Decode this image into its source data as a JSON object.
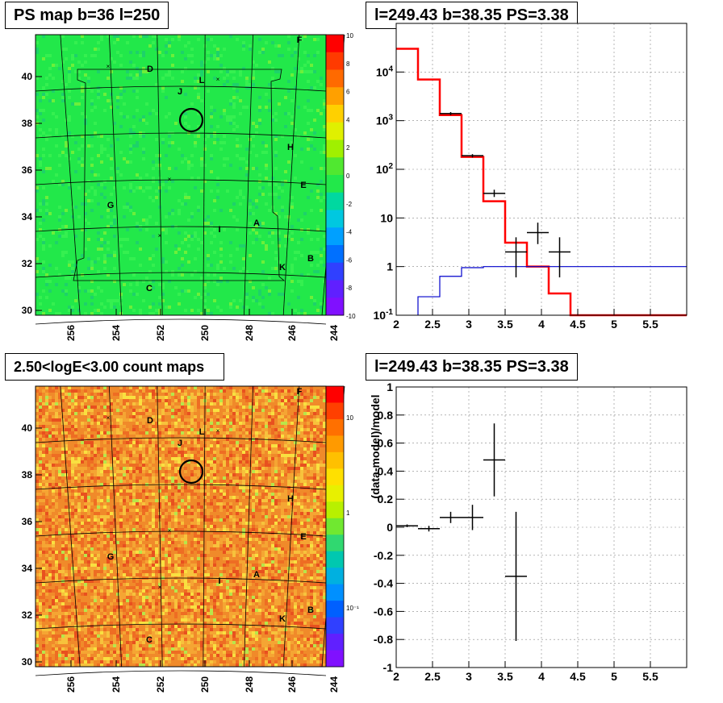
{
  "panels": {
    "tl": {
      "title": "PS map b=36 l=250"
    },
    "tr": {
      "title": "l=249.43 b=38.35 PS=3.38"
    },
    "bl": {
      "title": "2.50<logE<3.00 count maps"
    },
    "br": {
      "title": "l=249.43 b=38.35 PS=3.38"
    }
  },
  "colors": {
    "ps_map_base": "#22e84a",
    "count_map_base": "#f08a2a",
    "model_line": "#ff0000",
    "data_points": "#000000",
    "background_line": "#0000cc"
  },
  "maps": {
    "x_ticks": [
      "256",
      "254",
      "252",
      "250",
      "248",
      "246",
      "244"
    ],
    "y_ticks": [
      "30",
      "32",
      "34",
      "36",
      "38",
      "40"
    ],
    "source_labels": [
      "F",
      "D",
      "L",
      "J",
      "H",
      "E",
      "G",
      "I",
      "A",
      "K",
      "B",
      "C"
    ],
    "ps_colorbar_ticks": [
      "10",
      "8",
      "6",
      "4",
      "2",
      "0",
      "-2",
      "-4",
      "-6",
      "-8",
      "-10"
    ],
    "count_colorbar_ticks": [
      "10",
      "1",
      "10⁻¹"
    ]
  },
  "chart_data": [
    {
      "type": "line",
      "title": "l=249.43 b=38.35 PS=3.38",
      "xlabel": "",
      "ylabel": "",
      "xlim": [
        2,
        6
      ],
      "ylim": [
        0.1,
        100000
      ],
      "yscale": "log",
      "x_ticks": [
        "2",
        "2.5",
        "3",
        "3.5",
        "4",
        "4.5",
        "5",
        "5.5"
      ],
      "y_ticks": [
        "10^-1",
        "1",
        "10",
        "10^2",
        "10^3",
        "10^4"
      ],
      "grid": true,
      "series": [
        {
          "kind": "step",
          "edges": [
            2,
            2.3,
            2.6,
            2.9,
            3.2,
            3.5,
            3.8,
            4.1,
            4.4,
            6
          ],
          "values": [
            30000,
            7000,
            1300,
            180,
            22,
            3.1,
            1.0,
            0.28,
            0.1
          ]
        },
        {
          "kind": "step",
          "edges": [
            2.3,
            2.6,
            2.9,
            3.2,
            6
          ],
          "values": [
            0.24,
            0.63,
            0.95,
            1.0
          ]
        },
        {
          "kind": "points",
          "points": [
            {
              "x": 2.75,
              "y": 1400,
              "xerr": 0.15,
              "ylo": 1300,
              "yhi": 1500
            },
            {
              "x": 3.05,
              "y": 190,
              "xerr": 0.15,
              "ylo": 175,
              "yhi": 205
            },
            {
              "x": 3.35,
              "y": 32,
              "xerr": 0.15,
              "ylo": 27,
              "yhi": 38
            },
            {
              "x": 3.65,
              "y": 2,
              "xerr": 0.15,
              "ylo": 0.6,
              "yhi": 4
            },
            {
              "x": 3.95,
              "y": 5,
              "xerr": 0.15,
              "ylo": 2.9,
              "yhi": 8
            },
            {
              "x": 4.25,
              "y": 2,
              "xerr": 0.15,
              "ylo": 0.6,
              "yhi": 4
            }
          ]
        }
      ]
    },
    {
      "type": "scatter",
      "title": "l=249.43 b=38.35 PS=3.38",
      "xlabel": "",
      "ylabel": "(data-model)/model",
      "xlim": [
        2,
        6
      ],
      "ylim": [
        -1,
        1
      ],
      "x_ticks": [
        "2",
        "2.5",
        "3",
        "3.5",
        "4",
        "4.5",
        "5",
        "5.5"
      ],
      "y_ticks": [
        "-1",
        "-0.8",
        "-0.6",
        "-0.4",
        "-0.2",
        "0",
        "0.2",
        "0.4",
        "0.6",
        "0.8",
        "1"
      ],
      "grid": true,
      "points": [
        {
          "x": 2.15,
          "y": 0.01,
          "xerr": 0.15,
          "ylo": 0.0,
          "yhi": 0.02
        },
        {
          "x": 2.45,
          "y": -0.01,
          "xerr": 0.15,
          "ylo": -0.03,
          "yhi": 0.01
        },
        {
          "x": 2.75,
          "y": 0.07,
          "xerr": 0.15,
          "ylo": 0.03,
          "yhi": 0.11
        },
        {
          "x": 3.05,
          "y": 0.07,
          "xerr": 0.15,
          "ylo": -0.02,
          "yhi": 0.16
        },
        {
          "x": 3.35,
          "y": 0.48,
          "xerr": 0.15,
          "ylo": 0.22,
          "yhi": 0.74
        },
        {
          "x": 3.65,
          "y": -0.35,
          "xerr": 0.15,
          "ylo": -0.81,
          "yhi": 0.11
        }
      ]
    }
  ]
}
